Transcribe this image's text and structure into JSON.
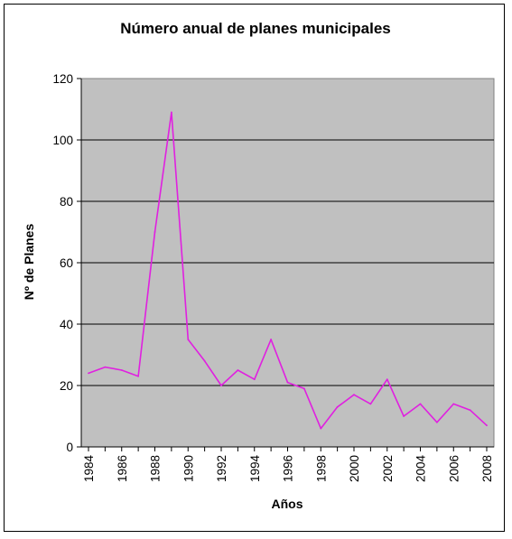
{
  "chart_data": {
    "type": "line",
    "title": "Número anual de planes municipales",
    "xlabel": "Años",
    "ylabel": "Nº de Planes",
    "ylim": [
      0,
      120
    ],
    "yticks": [
      0,
      20,
      40,
      60,
      80,
      100,
      120
    ],
    "xticks": [
      "1984",
      "1986",
      "1988",
      "1990",
      "1992",
      "1994",
      "1996",
      "1998",
      "2000",
      "2002",
      "2004",
      "2006",
      "2008"
    ],
    "x": [
      1984,
      1985,
      1986,
      1987,
      1988,
      1989,
      1990,
      1991,
      1992,
      1993,
      1994,
      1995,
      1996,
      1997,
      1998,
      1999,
      2000,
      2001,
      2002,
      2003,
      2004,
      2005,
      2006,
      2007,
      2008
    ],
    "series": [
      {
        "values": [
          24,
          26,
          25,
          23,
          70,
          109,
          35,
          28,
          20,
          25,
          22,
          35,
          21,
          19,
          6,
          13,
          17,
          14,
          22,
          10,
          14,
          8,
          14,
          12,
          7
        ],
        "color": "#e020e0"
      }
    ],
    "grid": true,
    "plot_background": "#c0c0c0",
    "legend": "none"
  }
}
